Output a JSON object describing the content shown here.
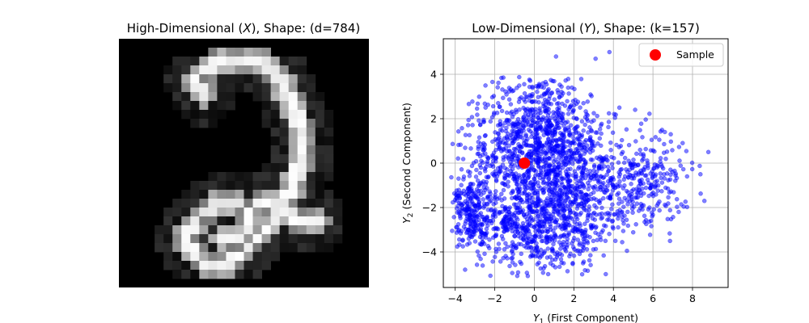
{
  "chart_data": [
    {
      "type": "heatmap",
      "title": "High-Dimensional (X), Shape: (d=784)",
      "title_parts": [
        "High-Dimensional (",
        "X",
        "), Shape: (d=784)"
      ],
      "colormap": "gray",
      "grid_size": [
        28,
        28
      ],
      "content_description": "handwritten digit 2 (MNIST-style image)",
      "axes_visible": false
    },
    {
      "type": "scatter",
      "title": "Low-Dimensional (Y), Shape: (k=157)",
      "title_parts": [
        "Low-Dimensional (",
        "Y",
        "), Shape: (k=157)"
      ],
      "xlabel": "Y1 (First Component)",
      "xlabel_parts": {
        "symbol": "Y",
        "sub": "1",
        "rest": " (First Component)"
      },
      "ylabel": "Y2 (Second Component)",
      "ylabel_parts": {
        "symbol": "Y",
        "sub": "2",
        "rest": " (Second Component)"
      },
      "xlim": [
        -4.6,
        9.8
      ],
      "ylim": [
        -5.6,
        5.6
      ],
      "xticks": [
        -4,
        -2,
        0,
        2,
        4,
        6,
        8
      ],
      "yticks": [
        -4,
        -2,
        0,
        2,
        4
      ],
      "grid": true,
      "legend_position": "top-right",
      "series": [
        {
          "role": "cloud",
          "color": "#0000ff",
          "alpha": 0.5,
          "density_anchors": [
            {
              "x": -1.0,
              "y": 0.0,
              "sx": 1.5,
              "sy": 2.2,
              "w": 0.28
            },
            {
              "x": 0.8,
              "y": 0.6,
              "sx": 1.1,
              "sy": 1.9,
              "w": 0.22
            },
            {
              "x": -3.2,
              "y": -2.2,
              "sx": 0.5,
              "sy": 0.8,
              "w": 0.09
            },
            {
              "x": 2.6,
              "y": -0.8,
              "sx": 1.3,
              "sy": 1.5,
              "w": 0.16
            },
            {
              "x": 5.6,
              "y": -0.8,
              "sx": 1.2,
              "sy": 1.0,
              "w": 0.1
            },
            {
              "x": 0.2,
              "y": -3.0,
              "sx": 1.6,
              "sy": 0.9,
              "w": 0.15
            }
          ],
          "outliers": [
            [
              8.8,
              0.5
            ],
            [
              8.6,
              -1.7
            ],
            [
              8.4,
              -0.5
            ],
            [
              7.5,
              0.9
            ],
            [
              7.3,
              -2.2
            ],
            [
              6.9,
              1.3
            ],
            [
              6.6,
              1.4
            ],
            [
              5.1,
              2.4
            ],
            [
              4.3,
              2.5
            ],
            [
              3.8,
              5.0
            ],
            [
              3.1,
              4.7
            ],
            [
              1.1,
              4.8
            ],
            [
              0.7,
              -5.0
            ],
            [
              3.6,
              -3.5
            ],
            [
              4.1,
              -3.5
            ]
          ]
        },
        {
          "name": "Sample",
          "role": "highlight",
          "color": "#ff0000",
          "points": [
            [
              -0.5,
              0.0
            ]
          ]
        }
      ]
    }
  ]
}
